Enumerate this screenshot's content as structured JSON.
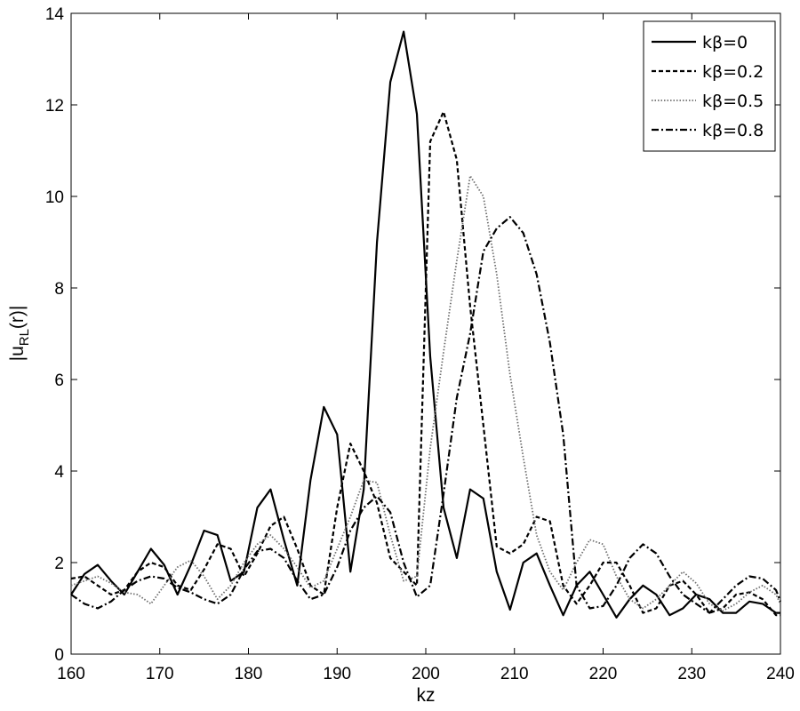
{
  "chart_data": {
    "type": "line",
    "xlabel": "kz",
    "ylabel": "|u_RL(r)|",
    "ylabel_parts": {
      "main": "|u",
      "sub": "RL",
      "rest": "(r)|"
    },
    "xlim": [
      160,
      240
    ],
    "ylim": [
      0,
      14
    ],
    "xticks": [
      "160",
      "170",
      "180",
      "190",
      "200",
      "210",
      "220",
      "230",
      "240"
    ],
    "yticks": [
      "0",
      "2",
      "4",
      "6",
      "8",
      "10",
      "12",
      "14"
    ],
    "grid": false,
    "legend_position": "top-right",
    "series": [
      {
        "name": "kβ=0",
        "dash": "solid",
        "color": "#000000",
        "x": [
          160,
          161.5,
          163,
          164.5,
          166,
          167.5,
          169,
          170.5,
          172,
          173.5,
          175,
          176.5,
          178,
          179.5,
          181,
          182.5,
          184,
          185.5,
          187,
          188.5,
          190,
          191.5,
          193,
          194.5,
          196,
          197.5,
          199,
          200.5,
          202,
          203.5,
          205,
          206.5,
          208,
          209.5,
          211,
          212.5,
          214,
          215.5,
          217,
          218.5,
          220,
          221.5,
          223,
          224.5,
          226,
          227.5,
          229,
          230.5,
          232,
          233.5,
          235,
          236.5,
          238,
          239.5,
          240
        ],
        "y": [
          1.3,
          1.75,
          1.95,
          1.6,
          1.3,
          1.8,
          2.3,
          1.95,
          1.3,
          1.95,
          2.7,
          2.6,
          1.6,
          1.8,
          3.2,
          3.6,
          2.5,
          1.5,
          3.8,
          5.4,
          4.8,
          1.8,
          3.6,
          9.0,
          12.5,
          13.6,
          11.8,
          6.5,
          3.2,
          2.1,
          3.6,
          3.4,
          1.8,
          0.97,
          2.0,
          2.2,
          1.5,
          0.85,
          1.5,
          1.8,
          1.3,
          0.8,
          1.2,
          1.5,
          1.3,
          0.85,
          1.0,
          1.3,
          1.2,
          0.9,
          0.9,
          1.15,
          1.1,
          0.9,
          0.9
        ]
      },
      {
        "name": "kβ=0.2",
        "dash": "dashed",
        "color": "#000000",
        "x": [
          160,
          161.5,
          163,
          164.5,
          166,
          167.5,
          169,
          170.5,
          172,
          173.5,
          175,
          176.5,
          178,
          179.5,
          181,
          182.5,
          184,
          185.5,
          187,
          188.5,
          190,
          191.5,
          193,
          194.5,
          196,
          197.5,
          199,
          200.5,
          202,
          203.5,
          205,
          206.5,
          208,
          209.5,
          211,
          212.5,
          214,
          215.5,
          217,
          218.5,
          220,
          221.5,
          223,
          224.5,
          226,
          227.5,
          229,
          230.5,
          232,
          233.5,
          235,
          236.5,
          238,
          239.5,
          240
        ],
        "y": [
          1.65,
          1.7,
          1.5,
          1.3,
          1.4,
          1.8,
          2.0,
          1.9,
          1.5,
          1.4,
          1.85,
          2.4,
          2.3,
          1.7,
          2.2,
          2.8,
          3.0,
          2.3,
          1.5,
          1.3,
          3.2,
          4.6,
          4.0,
          3.3,
          2.1,
          1.8,
          1.5,
          11.2,
          11.85,
          10.8,
          7.6,
          5.0,
          2.35,
          2.2,
          2.4,
          3.0,
          2.9,
          1.5,
          1.1,
          1.5,
          2.0,
          2.0,
          1.5,
          0.9,
          1.0,
          1.5,
          1.6,
          1.3,
          0.9,
          1.0,
          1.3,
          1.35,
          1.2,
          0.85,
          0.85
        ]
      },
      {
        "name": "kβ=0.5",
        "dash": "dotted",
        "color": "#6e6e6e",
        "x": [
          160,
          161.5,
          163,
          164.5,
          166,
          167.5,
          169,
          170.5,
          172,
          173.5,
          175,
          176.5,
          178,
          179.5,
          181,
          182.5,
          184,
          185.5,
          187,
          188.5,
          190,
          191.5,
          193,
          194.5,
          196,
          197.5,
          199,
          200.5,
          202,
          203.5,
          205,
          206.5,
          208,
          209.5,
          211,
          212.5,
          214,
          215.5,
          217,
          218.5,
          220,
          221.5,
          223,
          224.5,
          226,
          227.5,
          229,
          230.5,
          232,
          233.5,
          235,
          236.5,
          238,
          239.5,
          240
        ],
        "y": [
          1.5,
          1.6,
          1.7,
          1.55,
          1.35,
          1.3,
          1.1,
          1.5,
          1.9,
          2.05,
          1.7,
          1.2,
          1.5,
          2.0,
          2.4,
          2.6,
          2.3,
          1.9,
          1.45,
          1.6,
          2.3,
          3.0,
          3.8,
          3.75,
          2.6,
          1.6,
          1.7,
          4.5,
          6.6,
          8.6,
          10.45,
          10.0,
          8.3,
          6.1,
          4.3,
          2.6,
          1.8,
          1.4,
          2.0,
          2.5,
          2.4,
          1.7,
          1.2,
          1.0,
          1.2,
          1.5,
          1.8,
          1.55,
          1.1,
          0.95,
          1.1,
          1.35,
          1.5,
          1.3,
          1.1
        ]
      },
      {
        "name": "kβ=0.8",
        "dash": "dashdot",
        "color": "#000000",
        "x": [
          160,
          161.5,
          163,
          164.5,
          166,
          167.5,
          169,
          170.5,
          172,
          173.5,
          175,
          176.5,
          178,
          179.5,
          181,
          182.5,
          184,
          185.5,
          187,
          188.5,
          190,
          191.5,
          193,
          194.5,
          196,
          197.5,
          199,
          200.5,
          202,
          203.5,
          205,
          206.5,
          208,
          209.5,
          211,
          212.5,
          214,
          215.5,
          217,
          218.5,
          220,
          221.5,
          223,
          224.5,
          226,
          227.5,
          229,
          230.5,
          232,
          233.5,
          235,
          236.5,
          238,
          239.5,
          240
        ],
        "y": [
          1.3,
          1.1,
          1.0,
          1.15,
          1.4,
          1.6,
          1.7,
          1.65,
          1.45,
          1.35,
          1.2,
          1.1,
          1.3,
          1.85,
          2.25,
          2.3,
          2.1,
          1.6,
          1.2,
          1.3,
          1.9,
          2.7,
          3.2,
          3.45,
          3.1,
          2.0,
          1.25,
          1.5,
          3.5,
          5.6,
          7.0,
          8.8,
          9.3,
          9.55,
          9.2,
          8.3,
          6.8,
          4.8,
          1.5,
          1.0,
          1.05,
          1.5,
          2.1,
          2.4,
          2.2,
          1.7,
          1.3,
          1.1,
          0.9,
          1.2,
          1.5,
          1.7,
          1.65,
          1.4,
          1.15
        ]
      }
    ]
  }
}
